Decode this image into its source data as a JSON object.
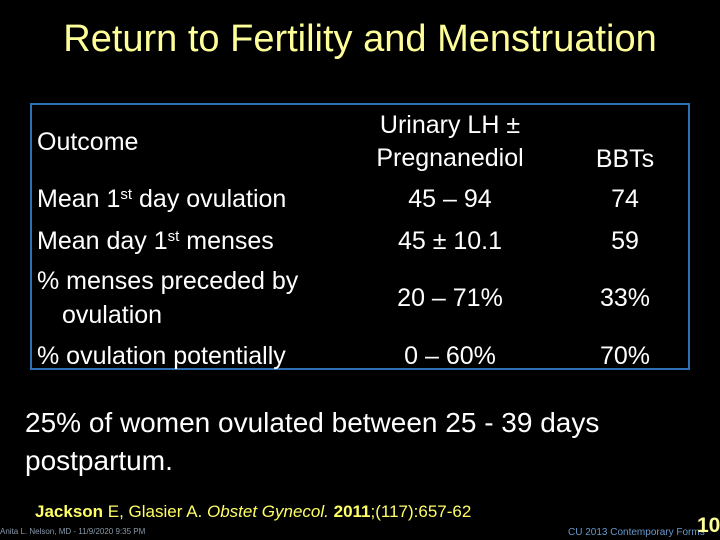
{
  "title": "Return to Fertility and Menstruation",
  "table": {
    "headers": {
      "outcome": "Outcome",
      "lh_line1": "Urinary LH ±",
      "lh_line2": "Pregnanediol",
      "bbt": "BBTs"
    },
    "rows": [
      {
        "label_a": "Mean 1",
        "label_sup": "st",
        "label_b": " day ovulation",
        "lh": "45 – 94",
        "bbt": "74"
      },
      {
        "label_a": "Mean day 1",
        "label_sup": "st",
        "label_b": " menses",
        "lh": "45 ± 10.1",
        "bbt": "59"
      },
      {
        "label_line1": "% menses preceded by",
        "label_line2": "ovulation",
        "lh": "20 – 71%",
        "bbt": "33%"
      },
      {
        "label": "% ovulation potentially",
        "lh": "0 – 60%",
        "bbt": "70%"
      }
    ]
  },
  "note": "25% of women ovulated between 25 - 39 days postpartum.",
  "citation": {
    "author": "Jackson",
    "rest1": " E, Glasier A. ",
    "journal": "Obstet Gynecol.",
    "space": " ",
    "year": "2011",
    "rest2": ";(117):657-62"
  },
  "footer": {
    "left": "Anita L. Nelson, MD - 11/9/2020 9:35 PM",
    "right": "CU 2013 Contemporary Forms",
    "slide_number": "10"
  },
  "colors": {
    "background": "#000000",
    "title": "#ffff99",
    "table_border": "#2f6fb3",
    "citation": "#ffff66"
  }
}
